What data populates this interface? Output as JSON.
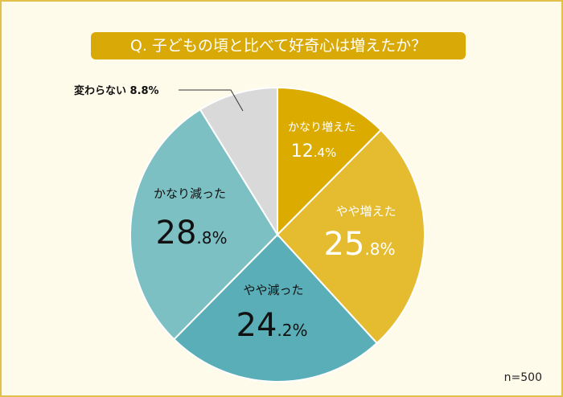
{
  "chart_data": {
    "type": "pie",
    "title": "Q. 子どもの頃と比べて好奇心は増えたか？",
    "start": "top, clockwise",
    "slices": [
      {
        "label": "かなり増えた",
        "value": 12.4,
        "color": "#dbab00",
        "text_color": "#ffffff"
      },
      {
        "label": "やや増えた",
        "value": 25.8,
        "color": "#e5bb30",
        "text_color": "#ffffff"
      },
      {
        "label": "やや減った",
        "value": 24.2,
        "color": "#5aaeb8",
        "text_color": "#111111"
      },
      {
        "label": "かなり減った",
        "value": 28.8,
        "color": "#7dc0c4",
        "text_color": "#111111"
      },
      {
        "label": "変わらない",
        "value": 8.8,
        "color": "#d9d9d9",
        "text_color": "#111111"
      }
    ],
    "note": "n=500"
  }
}
